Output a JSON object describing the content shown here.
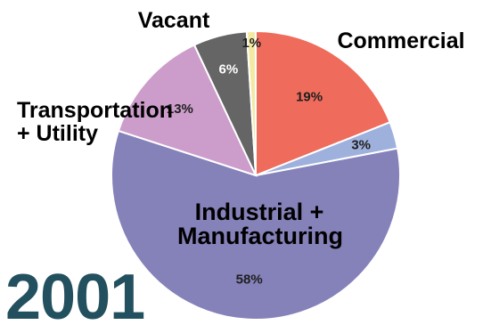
{
  "year": "2001",
  "colors": {
    "year": "#23505f"
  },
  "chart_data": {
    "type": "pie",
    "slices": [
      {
        "label": "Commercial",
        "pct_text": "19%",
        "value": 19,
        "color": "#ef6b5b",
        "pct_color": "#1f1f1f"
      },
      {
        "label": "",
        "pct_text": "3%",
        "value": 3,
        "color": "#9eb0dc",
        "pct_color": "#1f1f1f"
      },
      {
        "label": "Industrial + Manufacturing",
        "pct_text": "58%",
        "value": 58,
        "color": "#8581b9",
        "pct_color": "#1f1f1f"
      },
      {
        "label": "Transportation + Utility",
        "pct_text": "13%",
        "value": 13,
        "color": "#cc9cca",
        "pct_color": "#1f1f1f"
      },
      {
        "label": "Vacant",
        "pct_text": "6%",
        "value": 6,
        "color": "#656565",
        "pct_color": "#ffffff"
      },
      {
        "label": "",
        "pct_text": "1%",
        "value": 1,
        "color": "#f4e9a3",
        "pct_color": "#1f1f1f"
      }
    ]
  }
}
